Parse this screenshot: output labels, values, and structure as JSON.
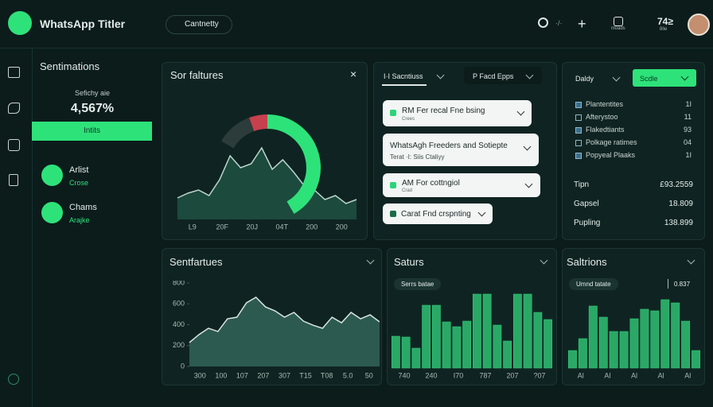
{
  "header": {
    "app_name": "WhatsApp Titler",
    "search_placeholder": "Cantnetty",
    "status": "·/·",
    "badge_label": "nloads",
    "time": "74≥",
    "time_sub": "8lie"
  },
  "sidebar": {
    "title": "Sentimations",
    "metric_label": "Sefichy aie",
    "metric_value": "4,567%",
    "button": "Intits",
    "items": [
      {
        "title": "Arlist",
        "subtitle": "Crose"
      },
      {
        "title": "Chams",
        "subtitle": "Arajke"
      }
    ]
  },
  "features": {
    "title": "Sor faltures",
    "chart": {
      "type": "area",
      "values": [
        27,
        33,
        37,
        30,
        50,
        80,
        65,
        70,
        90,
        63,
        75,
        60,
        43,
        37,
        25,
        30,
        20,
        25
      ],
      "ylim": [
        0,
        100
      ],
      "x_labels": [
        "L9",
        "20F",
        "20J",
        "04T",
        "200",
        "200"
      ]
    }
  },
  "lists": {
    "tabs": [
      "Ι·Ι Sacntiuss",
      "Ρ Facd Epps"
    ],
    "cards": [
      {
        "title": "RM Fer recal Fne bsing",
        "subtitle": "Crees"
      },
      {
        "title": "WhatsAgh Freeders and Sotiepte",
        "subtitle": "Terat ·Ι: Siis Ctaliyy"
      },
      {
        "title": "AM For cottngiol",
        "subtitle": "Crad"
      },
      {
        "title": "Carat Fnd crspnting"
      }
    ]
  },
  "stats": {
    "period": "Daldy",
    "action": "Scdle",
    "rows": [
      {
        "label": "Plantentites",
        "value": "1Ι"
      },
      {
        "label": "Afterystoo",
        "value": "11"
      },
      {
        "label": "Flakedtiants",
        "value": "93"
      },
      {
        "label": "Polkage ratimes",
        "value": "04"
      },
      {
        "label": "Popyeal Plaaks",
        "value": "1Ι"
      }
    ],
    "totals": [
      {
        "label": "Tipn",
        "value": "£93.2559"
      },
      {
        "label": "Gapsel",
        "value": "18.809"
      },
      {
        "label": "Pupling",
        "value": "138.899"
      }
    ]
  },
  "sentiment": {
    "title": "Sentfartues",
    "chart": {
      "type": "area",
      "values": [
        229,
        305,
        366,
        335,
        457,
        472,
        610,
        663,
        571,
        533,
        472,
        518,
        434,
        396,
        366,
        472,
        419,
        518,
        457,
        495,
        427
      ],
      "ylim": [
        0,
        800
      ],
      "yticks": [
        0,
        200,
        400,
        600,
        800
      ],
      "x_labels": [
        "300",
        "100",
        "107",
        "207",
        "307",
        "T15",
        "T08",
        "5.0",
        "50"
      ]
    }
  },
  "saturs": {
    "title": "Saturs",
    "tag": "Serrs batae",
    "chart": {
      "type": "bar",
      "values": [
        40,
        39,
        25,
        79,
        79,
        58,
        52,
        59,
        93,
        93,
        54,
        34,
        93,
        93,
        70,
        61
      ],
      "ylim": [
        0,
        100
      ],
      "x_labels": [
        "740",
        "240",
        "Ι70",
        "787",
        "207",
        "?07"
      ]
    }
  },
  "saltrions": {
    "title": "Saltrions",
    "tag": "Umnd tatate",
    "stat": "0.837",
    "chart": {
      "type": "bar",
      "values": [
        22,
        37,
        78,
        64,
        46,
        46,
        62,
        74,
        72,
        86,
        82,
        59,
        22
      ],
      "ylim": [
        0,
        100
      ],
      "x_labels": [
        "Al",
        "Al",
        "Al",
        "Al",
        "Al"
      ]
    }
  }
}
